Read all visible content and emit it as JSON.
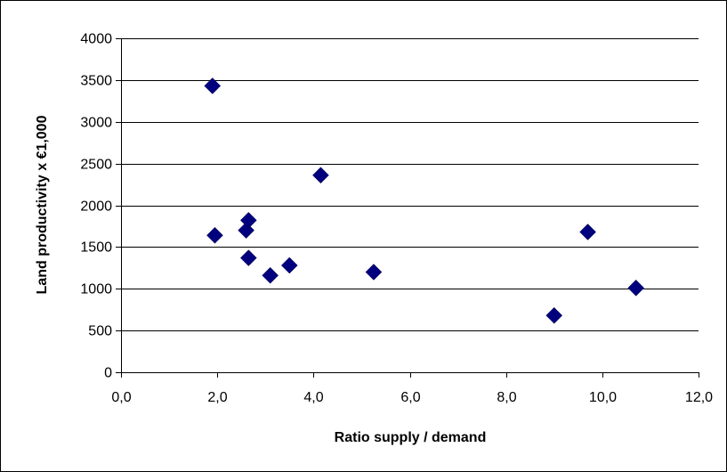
{
  "chart_data": {
    "type": "scatter",
    "title": "",
    "xlabel": "Ratio supply / demand",
    "ylabel": "Land productivity x €1,000",
    "xlim": [
      0,
      12
    ],
    "ylim": [
      0,
      4000
    ],
    "x_ticks": [
      0,
      2,
      4,
      6,
      8,
      10,
      12
    ],
    "x_tick_labels": [
      "0,0",
      "2,0",
      "4,0",
      "6,0",
      "8,0",
      "10,0",
      "12,0"
    ],
    "y_ticks": [
      0,
      500,
      1000,
      1500,
      2000,
      2500,
      3000,
      3500,
      4000
    ],
    "y_tick_labels": [
      "0",
      "500",
      "1000",
      "1500",
      "2000",
      "2500",
      "3000",
      "3500",
      "4000"
    ],
    "grid": {
      "x": false,
      "y": true
    },
    "legend": "none",
    "marker": "diamond",
    "marker_color": "#00007f",
    "grid_color": "#000000",
    "series": [
      {
        "points": [
          {
            "x": 1.9,
            "y": 3430
          },
          {
            "x": 1.95,
            "y": 1640
          },
          {
            "x": 2.6,
            "y": 1700
          },
          {
            "x": 2.65,
            "y": 1820
          },
          {
            "x": 2.65,
            "y": 1370
          },
          {
            "x": 3.1,
            "y": 1160
          },
          {
            "x": 3.5,
            "y": 1280
          },
          {
            "x": 4.15,
            "y": 2360
          },
          {
            "x": 5.25,
            "y": 1200
          },
          {
            "x": 9.0,
            "y": 680
          },
          {
            "x": 9.7,
            "y": 1680
          },
          {
            "x": 10.7,
            "y": 1010
          }
        ]
      }
    ]
  }
}
